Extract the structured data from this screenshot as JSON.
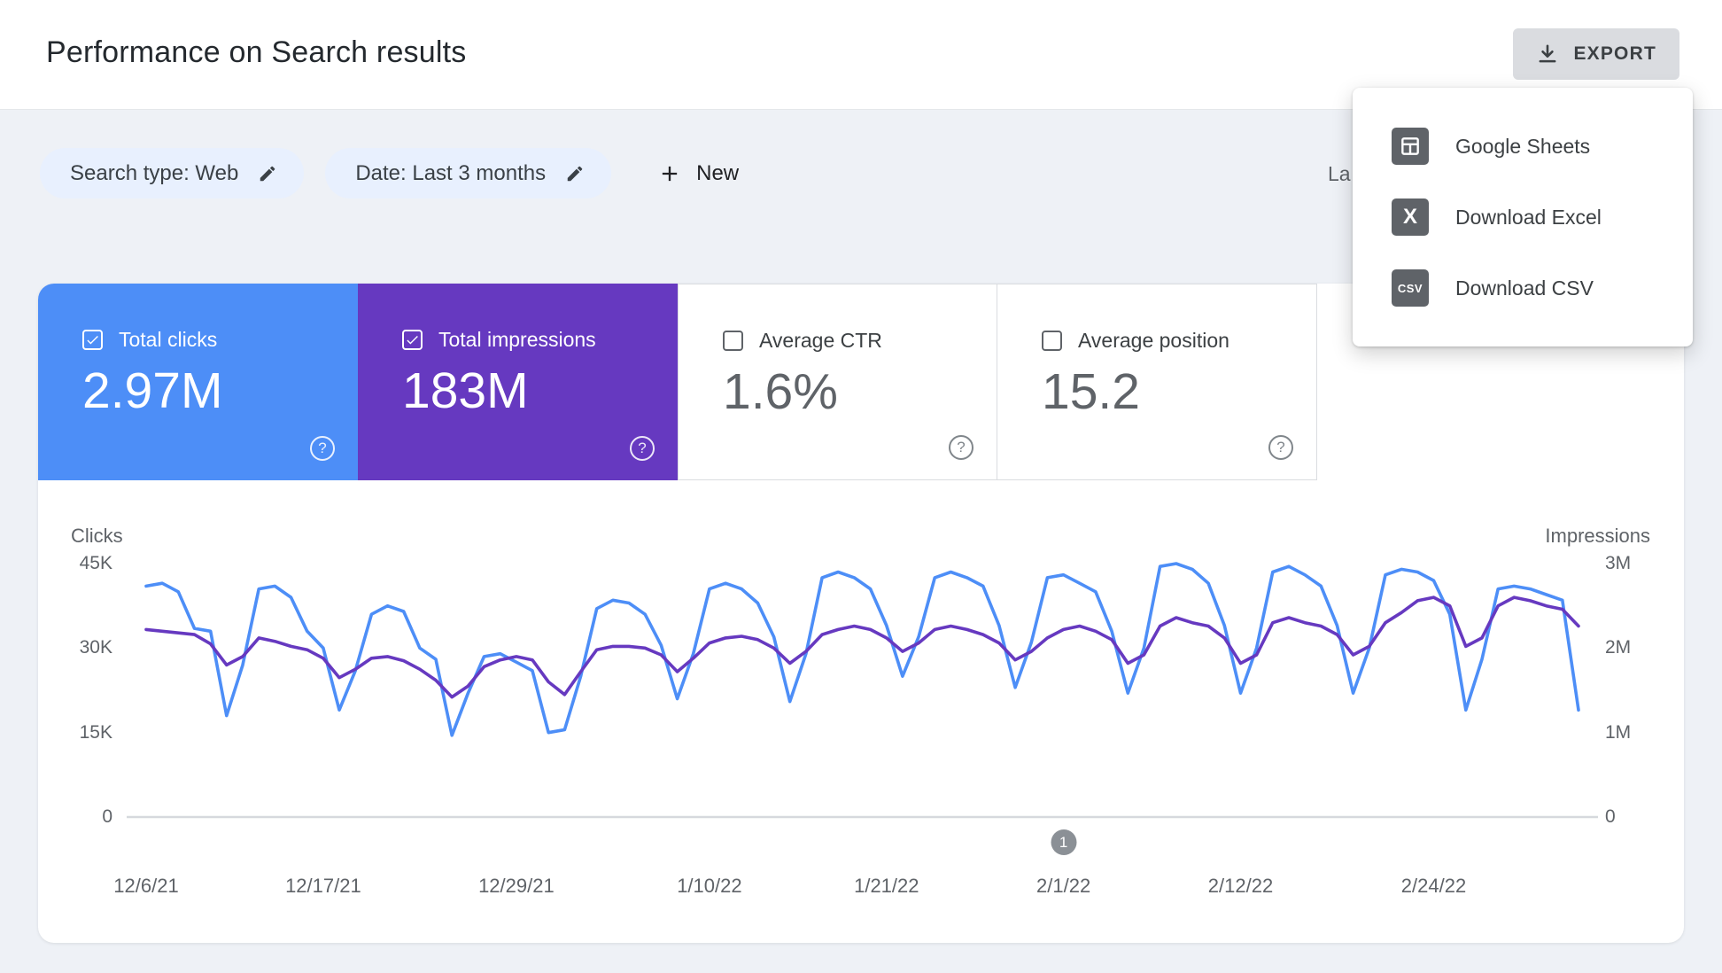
{
  "header": {
    "title": "Performance on Search results",
    "export_label": "EXPORT"
  },
  "export_menu": {
    "items": [
      {
        "label": "Google Sheets",
        "icon": "google-sheets-icon",
        "glyph": ""
      },
      {
        "label": "Download Excel",
        "icon": "excel-icon",
        "glyph": "X"
      },
      {
        "label": "Download CSV",
        "icon": "csv-icon",
        "glyph": "CSV"
      }
    ]
  },
  "filters": {
    "search_type_chip": "Search type: Web",
    "date_chip": "Date: Last 3 months",
    "new_button": "New",
    "last_updated_partial": "La"
  },
  "metrics": [
    {
      "label": "Total clicks",
      "value": "2.97M",
      "checked": true,
      "color": "#4d8ef7"
    },
    {
      "label": "Total impressions",
      "value": "183M",
      "checked": true,
      "color": "#6639c0"
    },
    {
      "label": "Average CTR",
      "value": "1.6%",
      "checked": false,
      "color": "#ffffff"
    },
    {
      "label": "Average position",
      "value": "15.2",
      "checked": false,
      "color": "#ffffff"
    }
  ],
  "chart_data": {
    "type": "line",
    "grid": "baseline-only",
    "left_axis": {
      "title": "Clicks",
      "ticks": [
        "45K",
        "30K",
        "15K",
        "0"
      ],
      "max_value": 45,
      "unit": "thousands"
    },
    "right_axis": {
      "title": "Impressions",
      "ticks": [
        "3M",
        "2M",
        "1M",
        "0"
      ],
      "max_value": 3,
      "unit": "millions"
    },
    "x_labels": [
      {
        "label": "12/6/21",
        "day": 0
      },
      {
        "label": "12/17/21",
        "day": 11
      },
      {
        "label": "12/29/21",
        "day": 23
      },
      {
        "label": "1/10/22",
        "day": 35
      },
      {
        "label": "1/21/22",
        "day": 46
      },
      {
        "label": "2/1/22",
        "day": 57
      },
      {
        "label": "2/12/22",
        "day": 68
      },
      {
        "label": "2/24/22",
        "day": 80
      }
    ],
    "annotation": {
      "label": "1",
      "day": 57
    },
    "series": [
      {
        "name": "Clicks",
        "axis": "left",
        "unit": "thousands",
        "color": "#4d8ef7",
        "values": [
          41,
          41.5,
          40,
          33.5,
          33,
          18,
          27,
          40.5,
          41,
          39,
          33,
          30,
          19,
          26,
          36,
          37.5,
          36.5,
          30,
          28,
          14.5,
          22,
          28.5,
          29,
          27.5,
          26,
          15,
          15.5,
          25,
          37,
          38.5,
          38,
          36,
          30.5,
          21,
          29,
          40.5,
          41.5,
          40.5,
          38,
          32,
          20.5,
          29,
          42.5,
          43.5,
          42.5,
          40.5,
          34,
          25,
          32,
          42.5,
          43.5,
          42.5,
          41,
          34,
          23,
          31,
          42.5,
          43,
          41.5,
          40,
          33,
          22,
          30,
          44.5,
          45,
          44,
          41.5,
          34,
          22,
          30,
          43.5,
          44.5,
          43,
          41,
          34,
          22,
          30,
          43,
          44,
          43.5,
          42,
          36,
          19,
          28,
          40.5,
          41,
          40.5,
          39.5,
          38.5,
          19
        ]
      },
      {
        "name": "Impressions",
        "axis": "right",
        "unit": "millions",
        "color": "#6639c0",
        "values": [
          2.22,
          2.2,
          2.18,
          2.16,
          2.05,
          1.8,
          1.9,
          2.12,
          2.08,
          2.02,
          1.98,
          1.88,
          1.65,
          1.75,
          1.88,
          1.9,
          1.85,
          1.75,
          1.62,
          1.42,
          1.55,
          1.78,
          1.86,
          1.9,
          1.86,
          1.6,
          1.45,
          1.72,
          1.98,
          2.02,
          2.02,
          2.0,
          1.92,
          1.72,
          1.88,
          2.06,
          2.12,
          2.14,
          2.1,
          2.0,
          1.82,
          1.96,
          2.16,
          2.22,
          2.26,
          2.22,
          2.12,
          1.96,
          2.06,
          2.22,
          2.26,
          2.22,
          2.16,
          2.06,
          1.86,
          1.96,
          2.12,
          2.22,
          2.26,
          2.2,
          2.1,
          1.82,
          1.92,
          2.26,
          2.36,
          2.3,
          2.26,
          2.12,
          1.82,
          1.92,
          2.3,
          2.36,
          2.3,
          2.26,
          2.16,
          1.92,
          2.02,
          2.3,
          2.42,
          2.56,
          2.6,
          2.5,
          2.02,
          2.12,
          2.5,
          2.6,
          2.56,
          2.5,
          2.46,
          2.26
        ]
      }
    ]
  }
}
